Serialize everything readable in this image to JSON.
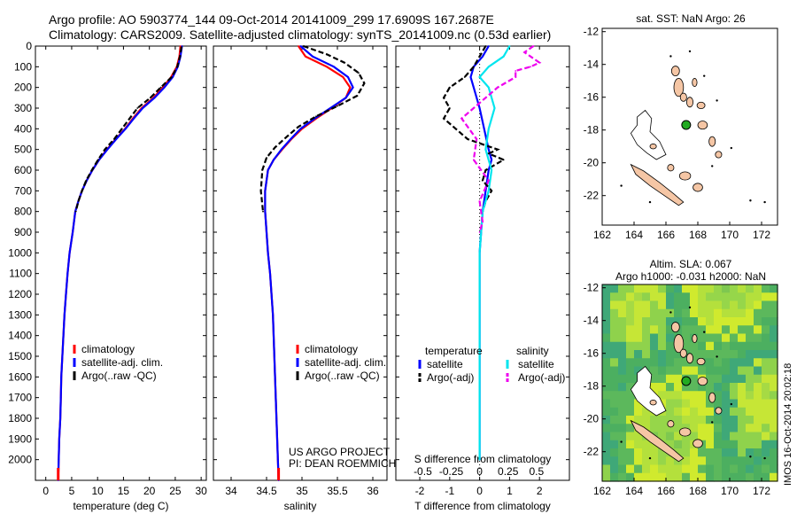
{
  "header": {
    "line1": "Argo profile: AO 5903774_144 09-Oct-2014 20141009_299 17.6909S 167.2687E",
    "line2": "Climatology: CARS2009. Satellite-adjusted climatology: synTS_20141009.nc (0.53d earlier)"
  },
  "colors": {
    "climatology": "#ff0000",
    "satellite": "#0000ff",
    "argo": "#000000",
    "salinity_satellite": "#00e5ee",
    "salinity_argo": "#ee00ee",
    "land": "#f5c6a5"
  },
  "chart_data": [
    {
      "type": "line",
      "id": "temperature",
      "xlabel": "temperature (deg C)",
      "ylabel": "",
      "xlim": [
        -2,
        31
      ],
      "ylim": [
        2100,
        0
      ],
      "xticks": [
        0,
        5,
        10,
        15,
        20,
        25,
        30
      ],
      "yticks": [
        0,
        100,
        200,
        300,
        400,
        500,
        600,
        700,
        800,
        900,
        1000,
        1100,
        1200,
        1300,
        1400,
        1500,
        1600,
        1700,
        1800,
        1900,
        2000
      ],
      "legend": [
        "climatology",
        "satellite-adj. clim.",
        "Argo(..raw -QC)"
      ],
      "legend_position": "bottom-center",
      "series": [
        {
          "name": "climatology",
          "color": "#ff0000",
          "style": "solid",
          "points": [
            [
              26,
              0
            ],
            [
              25.8,
              50
            ],
            [
              25.3,
              100
            ],
            [
              24.2,
              150
            ],
            [
              22.6,
              200
            ],
            [
              20.8,
              250
            ],
            [
              18.5,
              300
            ],
            [
              16.8,
              350
            ],
            [
              15.3,
              400
            ],
            [
              13.5,
              450
            ],
            [
              11.8,
              500
            ],
            [
              10.3,
              550
            ],
            [
              9.0,
              600
            ],
            [
              7.9,
              650
            ],
            [
              7.0,
              700
            ],
            [
              6.3,
              750
            ],
            [
              5.7,
              800
            ],
            [
              5.2,
              900
            ],
            [
              4.6,
              1000
            ],
            [
              4.2,
              1100
            ],
            [
              3.9,
              1200
            ],
            [
              3.6,
              1300
            ],
            [
              3.4,
              1400
            ],
            [
              3.2,
              1500
            ],
            [
              3.0,
              1600
            ],
            [
              2.9,
              1700
            ],
            [
              2.8,
              1800
            ],
            [
              2.6,
              1900
            ],
            [
              2.5,
              2000
            ],
            [
              2.4,
              2100
            ]
          ]
        },
        {
          "name": "satellite-adj. clim.",
          "color": "#0000ff",
          "style": "solid",
          "points": [
            [
              26.3,
              0
            ],
            [
              26,
              50
            ],
            [
              25.5,
              100
            ],
            [
              24.5,
              150
            ],
            [
              22.9,
              200
            ],
            [
              21,
              250
            ],
            [
              18.7,
              300
            ],
            [
              17,
              350
            ],
            [
              15.4,
              400
            ],
            [
              13.6,
              450
            ],
            [
              11.9,
              500
            ],
            [
              10.3,
              550
            ],
            [
              9.0,
              600
            ],
            [
              7.9,
              650
            ],
            [
              7.0,
              700
            ],
            [
              6.3,
              750
            ],
            [
              5.7,
              800
            ],
            [
              5.2,
              900
            ],
            [
              4.6,
              1000
            ],
            [
              4.2,
              1100
            ],
            [
              3.9,
              1200
            ],
            [
              3.6,
              1300
            ],
            [
              3.4,
              1400
            ],
            [
              3.2,
              1500
            ],
            [
              3.0,
              1600
            ],
            [
              2.9,
              1700
            ],
            [
              2.8,
              1800
            ],
            [
              2.6,
              1900
            ],
            [
              2.5,
              2000
            ],
            [
              2.4,
              2100
            ]
          ]
        },
        {
          "name": "Argo(..raw -QC)",
          "color": "#000000",
          "style": "dashed",
          "points": [
            [
              26.2,
              5
            ],
            [
              25.9,
              50
            ],
            [
              25.4,
              100
            ],
            [
              24.3,
              150
            ],
            [
              22.2,
              200
            ],
            [
              20.2,
              250
            ],
            [
              17.7,
              300
            ],
            [
              16.2,
              350
            ],
            [
              14.7,
              400
            ],
            [
              13.2,
              450
            ],
            [
              11.4,
              500
            ],
            [
              10.1,
              550
            ],
            [
              8.9,
              600
            ],
            [
              7.8,
              650
            ],
            [
              7.0,
              700
            ],
            [
              6.3,
              750
            ],
            [
              5.8,
              800
            ]
          ]
        }
      ]
    },
    {
      "type": "line",
      "id": "salinity",
      "xlabel": "salinity",
      "ylabel": "",
      "xlim": [
        33.75,
        36.2
      ],
      "ylim": [
        2100,
        0
      ],
      "xticks": [
        34,
        34.5,
        35,
        35.5,
        36
      ],
      "legend": [
        "climatology",
        "satellite-adj. clim.",
        "Argo(..raw -QC)"
      ],
      "legend_position": "bottom-center",
      "annotation": [
        "US ARGO PROJECT",
        "PI: DEAN ROEMMICH"
      ],
      "series": [
        {
          "name": "climatology",
          "color": "#ff0000",
          "style": "solid",
          "points": [
            [
              34.95,
              0
            ],
            [
              35.05,
              50
            ],
            [
              35.35,
              100
            ],
            [
              35.58,
              150
            ],
            [
              35.68,
              200
            ],
            [
              35.62,
              250
            ],
            [
              35.42,
              300
            ],
            [
              35.2,
              350
            ],
            [
              35.0,
              400
            ],
            [
              34.85,
              450
            ],
            [
              34.72,
              500
            ],
            [
              34.6,
              550
            ],
            [
              34.52,
              600
            ],
            [
              34.48,
              700
            ],
            [
              34.48,
              800
            ],
            [
              34.5,
              900
            ],
            [
              34.52,
              1000
            ],
            [
              34.55,
              1100
            ],
            [
              34.57,
              1200
            ],
            [
              34.59,
              1300
            ],
            [
              34.6,
              1400
            ],
            [
              34.61,
              1500
            ],
            [
              34.62,
              1600
            ],
            [
              34.63,
              1700
            ],
            [
              34.64,
              1800
            ],
            [
              34.65,
              1900
            ],
            [
              34.66,
              2000
            ],
            [
              34.67,
              2100
            ]
          ]
        },
        {
          "name": "satellite-adj. clim.",
          "color": "#0000ff",
          "style": "solid",
          "points": [
            [
              34.98,
              0
            ],
            [
              35.15,
              50
            ],
            [
              35.45,
              100
            ],
            [
              35.65,
              150
            ],
            [
              35.72,
              200
            ],
            [
              35.62,
              250
            ],
            [
              35.4,
              300
            ],
            [
              35.18,
              350
            ],
            [
              34.98,
              400
            ],
            [
              34.84,
              450
            ],
            [
              34.71,
              500
            ],
            [
              34.6,
              550
            ],
            [
              34.52,
              600
            ],
            [
              34.48,
              700
            ],
            [
              34.48,
              800
            ],
            [
              34.5,
              900
            ],
            [
              34.52,
              1000
            ],
            [
              34.55,
              1100
            ],
            [
              34.57,
              1200
            ],
            [
              34.59,
              1300
            ],
            [
              34.6,
              1400
            ],
            [
              34.61,
              1500
            ],
            [
              34.62,
              1600
            ],
            [
              34.63,
              1700
            ],
            [
              34.64,
              1800
            ],
            [
              34.65,
              1900
            ],
            [
              34.66,
              2000
            ],
            [
              34.67,
              2100
            ]
          ]
        },
        {
          "name": "Argo(..raw -QC)",
          "color": "#000000",
          "style": "dashed",
          "points": [
            [
              35.02,
              0
            ],
            [
              35.35,
              40
            ],
            [
              35.6,
              80
            ],
            [
              35.8,
              130
            ],
            [
              35.88,
              180
            ],
            [
              35.78,
              240
            ],
            [
              35.5,
              290
            ],
            [
              35.2,
              340
            ],
            [
              34.95,
              390
            ],
            [
              34.78,
              440
            ],
            [
              34.62,
              490
            ],
            [
              34.5,
              540
            ],
            [
              34.44,
              600
            ],
            [
              34.42,
              700
            ],
            [
              34.45,
              800
            ]
          ]
        }
      ]
    },
    {
      "type": "line",
      "id": "differences",
      "xlabel": "T difference from climatology",
      "xlabel_top": "S difference from climatology",
      "xlim": [
        -2.8,
        3.0
      ],
      "ylim": [
        2100,
        0
      ],
      "xticks": [
        -2,
        -1,
        0,
        1,
        2
      ],
      "sticks": [
        "-0.5",
        "-0.25",
        "0",
        "0.25",
        "0.5"
      ],
      "sticks_pos": [
        -1.9,
        -0.95,
        0,
        0.95,
        1.9
      ],
      "legend": [
        {
          "group": "temperature",
          "items": [
            "satellite",
            "Argo(-adj)"
          ]
        },
        {
          "group": "salinity",
          "items": [
            "satellite",
            "Argo(-adj)"
          ]
        }
      ],
      "series": [
        {
          "name": "temperature satellite",
          "color": "#0000ff",
          "style": "solid",
          "points": [
            [
              0.3,
              0
            ],
            [
              0.1,
              50
            ],
            [
              -0.2,
              100
            ],
            [
              -0.3,
              150
            ],
            [
              -0.2,
              200
            ],
            [
              0.0,
              300
            ],
            [
              0.15,
              400
            ],
            [
              0.3,
              500
            ],
            [
              0.4,
              550
            ],
            [
              0.3,
              600
            ],
            [
              0.2,
              700
            ],
            [
              0.1,
              800
            ],
            [
              0.05,
              900
            ],
            [
              0,
              1000
            ],
            [
              0,
              2000
            ]
          ]
        },
        {
          "name": "temperature Argo(-adj)",
          "color": "#000000",
          "style": "dashed",
          "points": [
            [
              0.2,
              0
            ],
            [
              0.0,
              50
            ],
            [
              -0.2,
              100
            ],
            [
              -0.5,
              150
            ],
            [
              -1.0,
              200
            ],
            [
              -1.2,
              250
            ],
            [
              -1.0,
              300
            ],
            [
              -1.2,
              350
            ],
            [
              -0.8,
              400
            ],
            [
              -0.4,
              450
            ],
            [
              0.6,
              500
            ],
            [
              0.3,
              520
            ],
            [
              0.8,
              550
            ],
            [
              0.2,
              600
            ],
            [
              0.1,
              650
            ],
            [
              0.4,
              700
            ],
            [
              0.2,
              750
            ],
            [
              0.1,
              800
            ]
          ]
        },
        {
          "name": "salinity satellite",
          "color": "#00e5ee",
          "style": "solid",
          "points": [
            [
              1.0,
              0
            ],
            [
              0.8,
              50
            ],
            [
              0.3,
              100
            ],
            [
              0.0,
              150
            ],
            [
              0.3,
              200
            ],
            [
              0.5,
              300
            ],
            [
              0.3,
              400
            ],
            [
              0.2,
              500
            ],
            [
              0.4,
              600
            ],
            [
              0.3,
              700
            ],
            [
              0.1,
              800
            ],
            [
              0.05,
              900
            ],
            [
              0,
              1000
            ],
            [
              0,
              2000
            ]
          ]
        },
        {
          "name": "salinity Argo(-adj)",
          "color": "#ee00ee",
          "style": "dashed",
          "points": [
            [
              1.8,
              0
            ],
            [
              1.5,
              30
            ],
            [
              2.0,
              80
            ],
            [
              1.7,
              100
            ],
            [
              1.2,
              120
            ],
            [
              1.2,
              150
            ],
            [
              0.6,
              200
            ],
            [
              0.2,
              250
            ],
            [
              -0.6,
              350
            ],
            [
              -0.1,
              450
            ],
            [
              -0.2,
              550
            ],
            [
              0.3,
              650
            ],
            [
              0.0,
              750
            ],
            [
              0.1,
              850
            ],
            [
              0.0,
              900
            ]
          ]
        }
      ]
    },
    {
      "type": "scatter",
      "id": "map_sst",
      "title": "sat. SST: NaN Argo: 26",
      "xlim": [
        162,
        173
      ],
      "ylim": [
        -23.8,
        -11.8
      ],
      "xticks": [
        162,
        164,
        166,
        168,
        170,
        172
      ],
      "yticks": [
        -12,
        -14,
        -16,
        -18,
        -20,
        -22
      ],
      "ytick_labels": [
        "-12",
        "-14",
        "-16",
        "-18",
        "-20",
        "-22"
      ],
      "marker": {
        "lon": 167.27,
        "lat": -17.69,
        "color": "#22aa22"
      }
    },
    {
      "type": "heatmap",
      "id": "map_sla",
      "title": "Altim. SLA: 0.067",
      "subtitle": "Argo h1000: -0.031 h2000: NaN",
      "xlim": [
        162,
        173
      ],
      "ylim": [
        -23.8,
        -11.8
      ],
      "xticks": [
        162,
        164,
        166,
        168,
        170,
        172
      ],
      "yticks": [
        -12,
        -14,
        -16,
        -18,
        -20,
        -22
      ],
      "ytick_labels": [
        "-12",
        "-14",
        "-16",
        "-18",
        "-20",
        "-22"
      ],
      "marker": {
        "lon": 167.27,
        "lat": -17.69,
        "color": "#22aa22"
      }
    }
  ],
  "watermark": "IMOS 16-Oct-2014 20:02:18"
}
